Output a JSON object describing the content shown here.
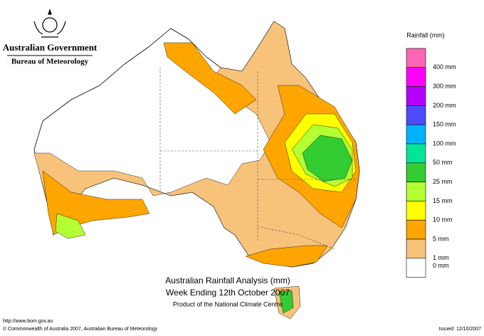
{
  "header": {
    "government": "Australian Government",
    "bureau": "Bureau of Meteorology"
  },
  "legend": {
    "title": "Rainfall (mm)",
    "items": [
      {
        "label": "400 mm",
        "color": "#ff66b3"
      },
      {
        "label": "300 mm",
        "color": "#ff00ff"
      },
      {
        "label": "200 mm",
        "color": "#b300ff"
      },
      {
        "label": "150 mm",
        "color": "#4d4dff"
      },
      {
        "label": "100 mm",
        "color": "#00b3ff"
      },
      {
        "label": "50 mm",
        "color": "#00e699"
      },
      {
        "label": "25 mm",
        "color": "#33cc33"
      },
      {
        "label": "15 mm",
        "color": "#b3ff33"
      },
      {
        "label": "10 mm",
        "color": "#ffff00"
      },
      {
        "label": "5 mm",
        "color": "#ffa500"
      },
      {
        "label": "1 mm",
        "color": "#f7c27a"
      },
      {
        "label": "0 mm",
        "color": "#ffffff"
      }
    ]
  },
  "title": {
    "line1": "Australian Rainfall Analysis (mm)",
    "line2": "Week Ending 12th October 2007",
    "line3": "Product of the National Climate Centre"
  },
  "footer": {
    "url": "http://www.bom.gov.au",
    "copyright": "© Commonwealth of Australia 2007, Australian Bureau of Meteorology",
    "issued": "Issued: 12/10/2007"
  }
}
